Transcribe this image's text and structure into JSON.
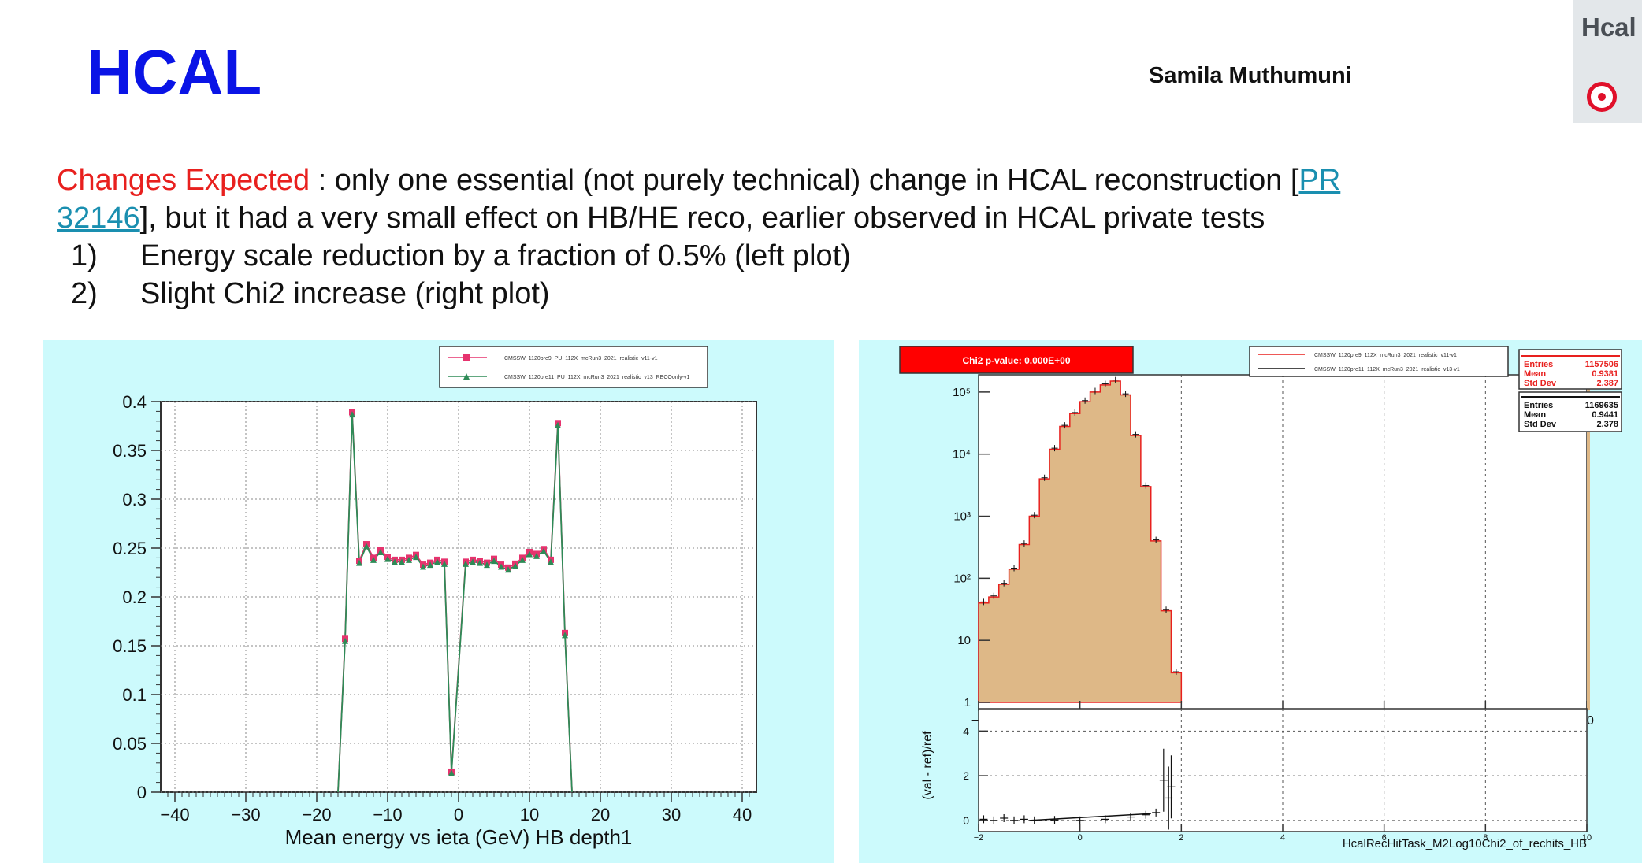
{
  "header": {
    "title": "HCAL",
    "author": "Samila Muthumuni",
    "corner_label": "Hcal",
    "corner_icon": "target-icon"
  },
  "text": {
    "changes_label": "Changes Expected",
    "intro_a": " : only one essential (not purely technical) change in HCAL reconstruction [",
    "link_a": "PR",
    "link_b": "32146",
    "intro_b": "], but it had a very small effect on HB/HE reco, earlier observed in HCAL private tests",
    "items": [
      {
        "num": "1)",
        "text": "Energy scale reduction by a fraction of 0.5% (left plot)"
      },
      {
        "num": "2)",
        "text": "Slight Chi2 increase (right plot)"
      }
    ]
  },
  "colors": {
    "title": "#0a14e6",
    "changes": "#e8201e",
    "link": "#1a8fb0",
    "panel_bg": "#ccfafc",
    "series_ref": "#e6336e",
    "series_val": "#2e8b57",
    "hist_fill": "#deb887",
    "hist_line": "#e8201e",
    "chi2_box": "#ff0000"
  },
  "chart_data": [
    {
      "type": "line",
      "xlabel": "Mean energy vs ieta (GeV) HB depth1",
      "ylabel": "",
      "xlim": [
        -42,
        42
      ],
      "ylim": [
        0,
        0.4
      ],
      "x_ticks": [
        "−40",
        "−30",
        "−20",
        "−10",
        "0",
        "10",
        "20",
        "30",
        "40"
      ],
      "y_ticks": [
        "0",
        "0.05",
        "0.1",
        "0.15",
        "0.2",
        "0.25",
        "0.3",
        "0.35",
        "0.4"
      ],
      "grid": true,
      "legend_position": "top-right",
      "x": [
        -16,
        -15,
        -14,
        -13,
        -12,
        -11,
        -10,
        -9,
        -8,
        -7,
        -6,
        -5,
        -4,
        -3,
        -2,
        -1,
        1,
        2,
        3,
        4,
        5,
        6,
        7,
        8,
        9,
        10,
        11,
        12,
        13,
        14,
        15,
        16
      ],
      "series": [
        {
          "name": "CMSSW_1120pre9_PU_112X_mcRun3_2021_realistic_v11-v1",
          "marker": "square",
          "values": [
            0.157,
            0.389,
            0.237,
            0.254,
            0.24,
            0.248,
            0.241,
            0.238,
            0.238,
            0.24,
            0.243,
            0.233,
            0.235,
            0.238,
            0.236,
            0.021,
            0.236,
            0.238,
            0.237,
            0.235,
            0.239,
            0.233,
            0.23,
            0.234,
            0.24,
            0.246,
            0.244,
            0.249,
            0.238,
            0.378,
            0.163,
            0.0
          ]
        },
        {
          "name": "CMSSW_1120pre11_PU_112X_mcRun3_2021_realistic_v13_RECOonly-v1",
          "marker": "triangle",
          "values": [
            0.155,
            0.387,
            0.235,
            0.252,
            0.238,
            0.246,
            0.239,
            0.236,
            0.236,
            0.238,
            0.241,
            0.231,
            0.233,
            0.236,
            0.234,
            0.02,
            0.234,
            0.236,
            0.235,
            0.233,
            0.237,
            0.231,
            0.228,
            0.232,
            0.238,
            0.244,
            0.242,
            0.247,
            0.236,
            0.376,
            0.161,
            0.0
          ]
        }
      ]
    },
    {
      "type": "bar",
      "title": "",
      "chi2_label": "Chi2 p-value: 0.000E+00",
      "xlabel": "HcalRecHitTask_M2Log10Chi2_of_rechits_HB",
      "xlim": [
        -2,
        10
      ],
      "x_ticks": [
        "−2",
        "0",
        "2",
        "4",
        "6",
        "8",
        "10"
      ],
      "y_scale": "log",
      "y_ticks": [
        "1",
        "10",
        "10²",
        "10³",
        "10⁴",
        "10⁵"
      ],
      "legend_position": "top-right",
      "legend": [
        "CMSSW_1120pre9_112X_mcRun3_2021_realistic_v11-v1",
        "CMSSW_1120pre11_112X_mcRun3_2021_realistic_v13-v1"
      ],
      "stats": [
        {
          "Entries": "1157506",
          "Mean": "0.9381",
          "Std Dev": "2.387"
        },
        {
          "Entries": "1169635",
          "Mean": "0.9441",
          "Std Dev": "2.378"
        }
      ],
      "bin_edges": [
        -2,
        -1.8,
        -1.6,
        -1.4,
        -1.2,
        -1.0,
        -0.8,
        -0.6,
        -0.4,
        -0.2,
        0,
        0.2,
        0.4,
        0.6,
        0.8,
        1.0,
        1.2,
        1.4,
        1.6,
        1.8,
        2.0
      ],
      "counts": [
        40,
        50,
        80,
        140,
        350,
        1000,
        4000,
        12000,
        28000,
        45000,
        70000,
        100000,
        130000,
        150000,
        90000,
        20000,
        3000,
        400,
        30,
        3
      ],
      "ratio_panel": {
        "ylabel": "(val - ref)/ref",
        "y_ticks": [
          "0",
          "2",
          "4"
        ],
        "x_ticks": [
          "−2",
          "0",
          "2",
          "4",
          "6",
          "8",
          "10"
        ],
        "ylim": [
          -0.5,
          5
        ],
        "x": [
          -1.9,
          -1.7,
          -1.5,
          -1.3,
          -1.1,
          -0.9,
          -0.5,
          0,
          0.5,
          1.0,
          1.3,
          1.5,
          1.65,
          1.75,
          1.8
        ],
        "values": [
          0.05,
          0.0,
          0.1,
          0.0,
          0.05,
          0.0,
          0.02,
          0.0,
          0.05,
          0.15,
          0.25,
          0.35,
          1.8,
          1.0,
          1.5
        ]
      }
    }
  ]
}
